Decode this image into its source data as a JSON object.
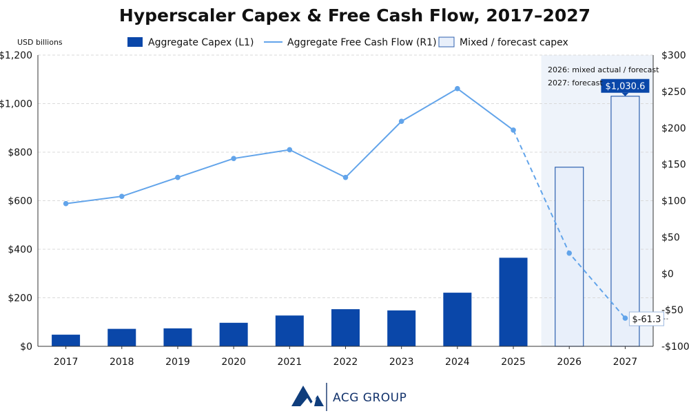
{
  "title": "Hyperscaler Capex & Free Cash Flow, 2017–2027",
  "unit_label": "USD billions",
  "legend": {
    "capex": "Aggregate Capex (L1)",
    "fcf": "Aggregate Free Cash Flow (R1)",
    "forecast": "Mixed / forecast capex"
  },
  "colors": {
    "capex": "#0a47a9",
    "fcf": "#62a4ea",
    "forecast_fill": "#e8effa",
    "forecast_stroke": "#2c5fae",
    "shade": "#eef3fa",
    "grid": "#d9d9d9"
  },
  "notes": [
    "2026: mixed actual / forecast",
    "2027: forecast"
  ],
  "callouts": {
    "capex_last": "$1,030.6",
    "fcf_last": "$-61.3"
  },
  "brand": {
    "name": "ACG GROUP",
    "logo_icon": "mountain-logo-icon"
  },
  "chart_data": {
    "type": "bar",
    "categories": [
      "2017",
      "2018",
      "2019",
      "2020",
      "2021",
      "2022",
      "2023",
      "2024",
      "2025",
      "2026",
      "2027"
    ],
    "series": [
      {
        "name": "Aggregate Capex (L1)",
        "type": "bar",
        "axis": "left",
        "values": [
          48,
          72,
          74,
          97,
          127,
          153,
          148,
          221,
          365,
          738,
          1030.6
        ],
        "forecast_from_index": 9
      },
      {
        "name": "Aggregate Free Cash Flow (R1)",
        "type": "line",
        "axis": "right",
        "values": [
          96,
          106,
          132,
          158,
          170,
          132,
          209,
          254,
          197,
          28,
          -61.3
        ],
        "forecast_from_index": 8
      }
    ],
    "left_axis": {
      "ylim": [
        0,
        1200
      ],
      "ticks": [
        0,
        200,
        400,
        600,
        800,
        1000,
        1200
      ],
      "tick_labels": [
        "$0",
        "$200",
        "$400",
        "$600",
        "$800",
        "$1,000",
        "$1,200"
      ]
    },
    "right_axis": {
      "ylim": [
        -100,
        300
      ],
      "ticks": [
        -100,
        -50,
        0,
        50,
        100,
        150,
        200,
        250,
        300
      ],
      "tick_labels": [
        "-$100",
        "-$50",
        "$0",
        "$50",
        "$100",
        "$150",
        "$200",
        "$250",
        "$300"
      ]
    },
    "shaded_categories": [
      "2026",
      "2027"
    ],
    "grid": true,
    "legend_position": "top"
  }
}
